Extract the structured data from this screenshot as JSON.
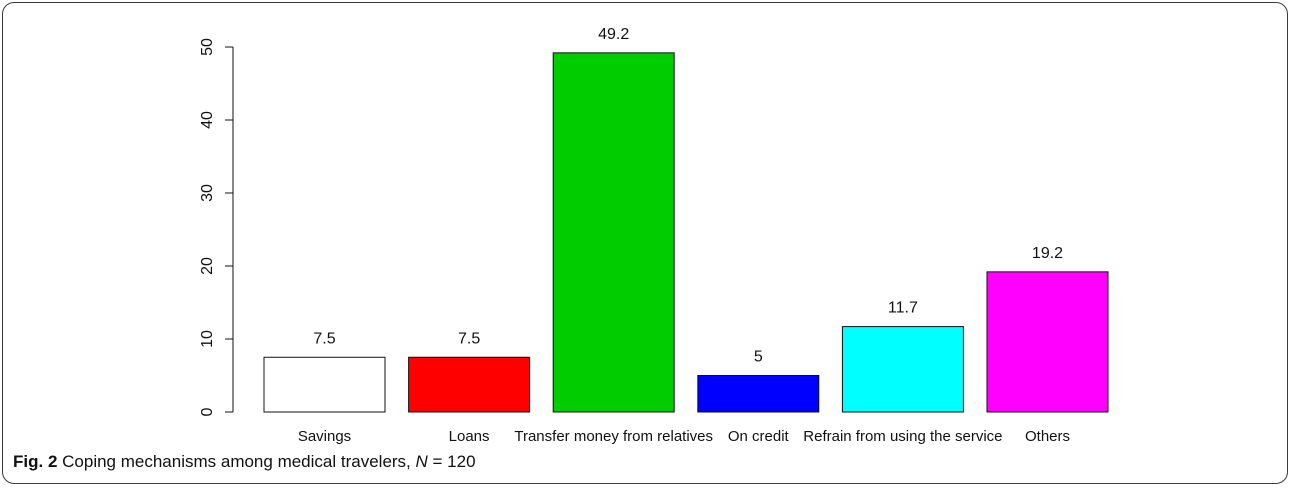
{
  "chart_data": {
    "type": "bar",
    "categories": [
      "Savings",
      "Loans",
      "Transfer money from relatives",
      "On credit",
      "Refrain from using the service",
      "Others"
    ],
    "values": [
      7.5,
      7.5,
      49.2,
      5,
      11.7,
      19.2
    ],
    "value_labels": [
      "7.5",
      "7.5",
      "49.2",
      "5",
      "11.7",
      "19.2"
    ],
    "colors": [
      "#ffffff",
      "#ff0000",
      "#00cc00",
      "#0000ff",
      "#00ffff",
      "#ff00ff"
    ],
    "ylim": [
      0,
      50
    ],
    "yticks": [
      0,
      10,
      20,
      30,
      40,
      50
    ],
    "grid": false,
    "legend": "none"
  },
  "caption": {
    "fig_label": "Fig. 2",
    "text": " Coping mechanisms among medical travelers, ",
    "n_symbol": "N",
    "n_value": " = 120"
  }
}
